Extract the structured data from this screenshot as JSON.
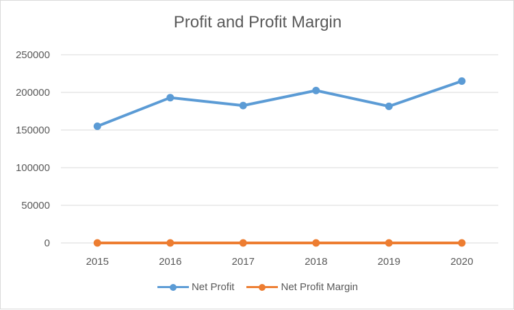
{
  "chart_data": {
    "type": "line",
    "title": "Profit and Profit Margin",
    "categories": [
      "2015",
      "2016",
      "2017",
      "2018",
      "2019",
      "2020"
    ],
    "series": [
      {
        "name": "Net Profit",
        "values": [
          155000,
          193000,
          182500,
          202500,
          181500,
          215000
        ],
        "color": "#5b9bd5"
      },
      {
        "name": "Net Profit Margin",
        "values": [
          0.1,
          0.1,
          0.1,
          0.1,
          0.1,
          0.1
        ],
        "color": "#ed7d31"
      }
    ],
    "ylim": [
      0,
      250000
    ],
    "yticks": [
      "0",
      "50000",
      "100000",
      "150000",
      "200000",
      "250000"
    ],
    "grid": "horizontal",
    "legend_position": "bottom"
  }
}
